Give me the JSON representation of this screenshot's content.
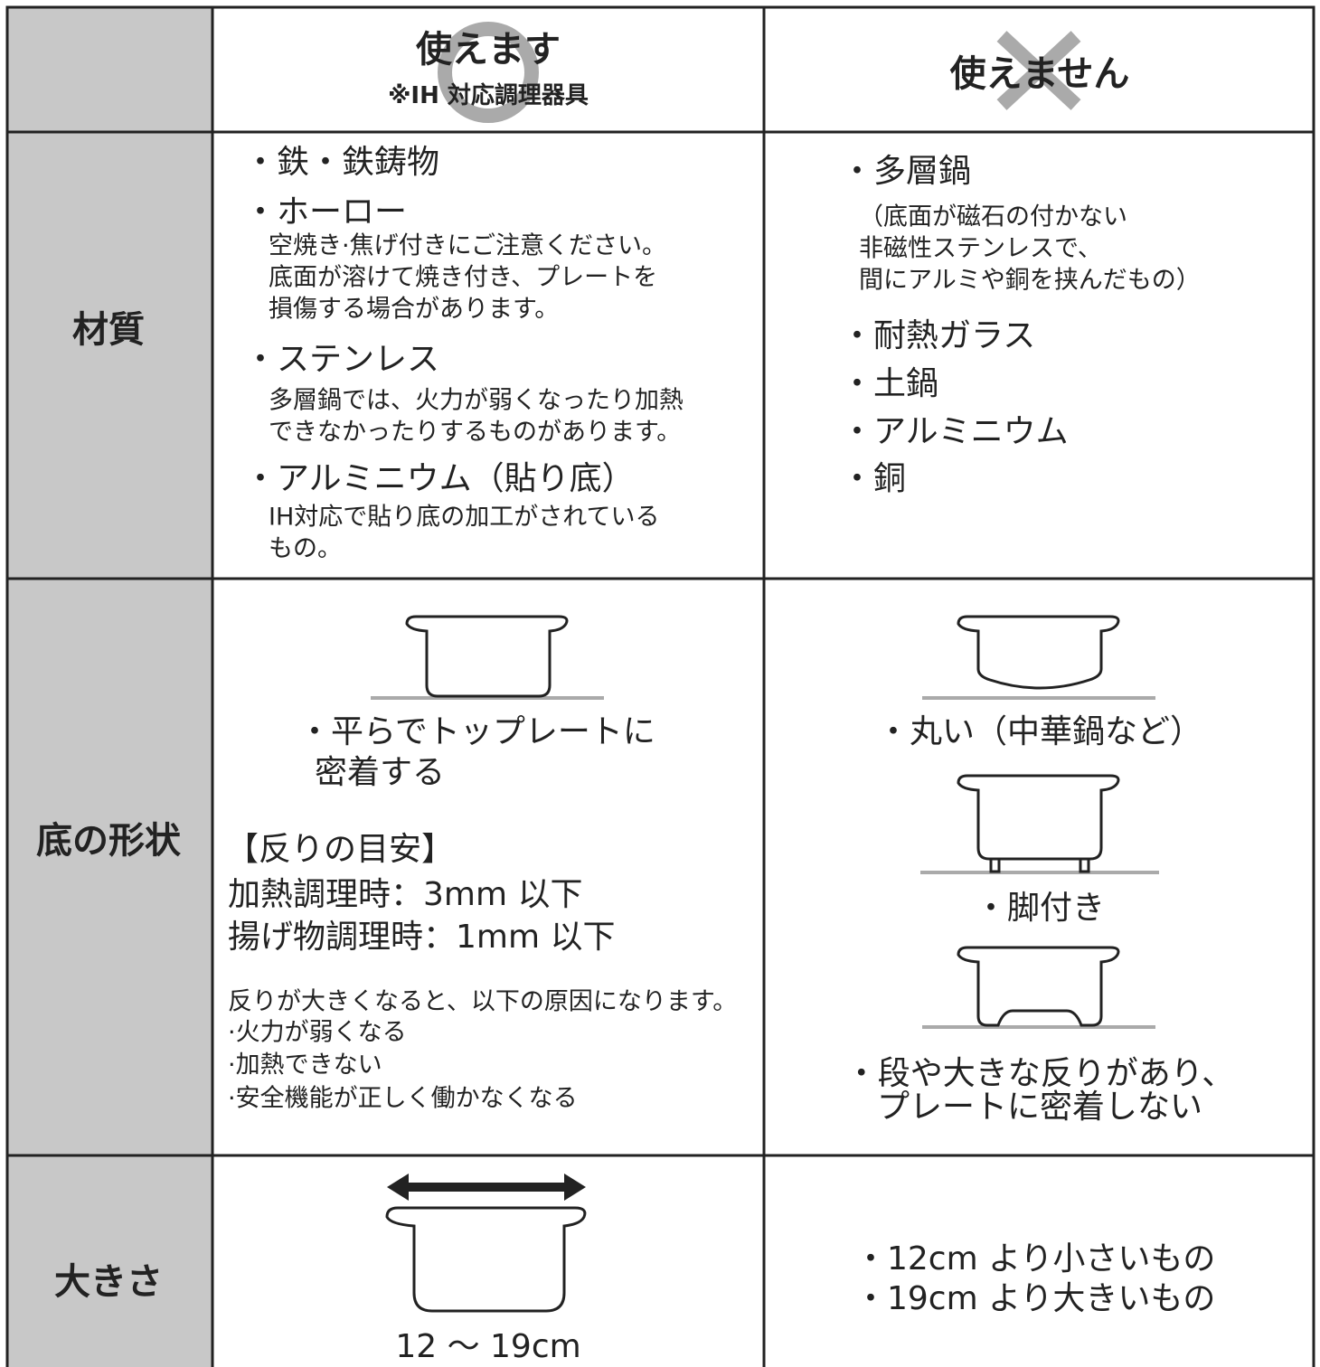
{
  "header": {
    "ok_title": "使えます",
    "ok_note": "※IH 対応調理器具",
    "ng_title": "使えません"
  },
  "rows": [
    {
      "label": "材質",
      "ok": [
        {
          "item": "・鉄・鉄鋳物"
        },
        {
          "item": "・ホーロー",
          "note": [
            "空焼き·焦げ付きにご注意ください。",
            "底面が溶けて焼き付き、プレートを",
            "損傷する場合があります。"
          ]
        },
        {
          "item": "・ステンレス",
          "note": [
            "多層鍋では、火力が弱くなったり加熱",
            "できなかったりするものがあります。"
          ]
        },
        {
          "item": "・アルミニウム（貼り底）",
          "note": [
            "IH対応で貼り底の加工がされている",
            "もの。"
          ]
        }
      ],
      "ng": [
        {
          "item": "・多層鍋",
          "note": [
            "（底面が磁石の付かない",
            "非磁性ステンレスで、",
            "間にアルミや銅を挟んだもの）"
          ]
        },
        {
          "item": "・耐熱ガラス"
        },
        {
          "item": "・土鍋"
        },
        {
          "item": "・アルミニウム"
        },
        {
          "item": "・銅"
        }
      ]
    },
    {
      "label": "底の形状",
      "ok": {
        "caption": [
          "・平らでトップレートに",
          "密着する"
        ],
        "guide_title": "【反りの目安】",
        "guide": [
          "加熱調理時：3mm 以下",
          "揚げ物調理時：1mm 以下"
        ],
        "note": [
          "反りが大きくなると、以下の原因になります。",
          "·火力が弱くなる",
          "·加熱できない",
          "·安全機能が正しく働かなくなる"
        ]
      },
      "ng": [
        "・丸い（中華鍋など）",
        "・脚付き",
        [
          "・段や大きな反りがあり、",
          "プレートに密着しない"
        ]
      ]
    },
    {
      "label": "大きさ",
      "ok": "12 ～ 19cm",
      "ng": [
        "・12cm より小さいもの",
        "・19cm より大きいもの"
      ]
    }
  ]
}
